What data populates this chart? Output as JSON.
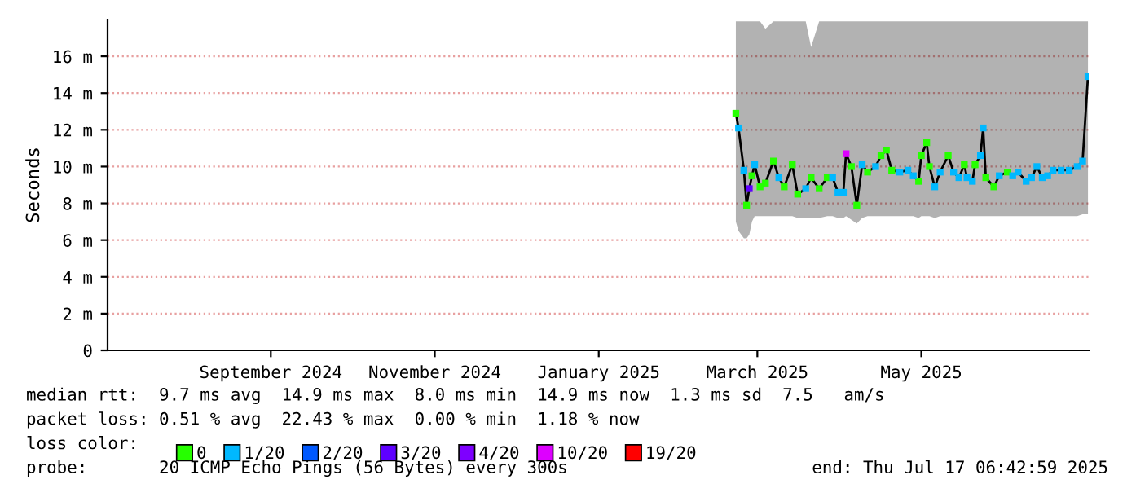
{
  "chart_data": {
    "type": "line",
    "ylabel": "Seconds",
    "xlim": [
      "2024-07-17T06:43",
      "2025-07-17T06:43"
    ],
    "xticks": [
      {
        "value": "2024-09-16",
        "label": "September 2024"
      },
      {
        "value": "2024-11-16",
        "label": "November 2024"
      },
      {
        "value": "2025-01-16",
        "label": "January 2025"
      },
      {
        "value": "2025-03-16",
        "label": "March 2025"
      },
      {
        "value": "2025-05-16",
        "label": "May 2025"
      }
    ],
    "ylim": [
      0,
      18
    ],
    "yticks": [
      0,
      {
        "value": 2,
        "label": "2 m"
      },
      {
        "value": 4,
        "label": "4 m"
      },
      {
        "value": 6,
        "label": "6 m"
      },
      {
        "value": 8,
        "label": "8 m"
      },
      {
        "value": 10,
        "label": "10 m"
      },
      {
        "value": 12,
        "label": "12 m"
      },
      {
        "value": 14,
        "label": "14 m"
      },
      {
        "value": 16,
        "label": "16 m"
      }
    ],
    "grid": "y",
    "legend": "bottom",
    "series": [
      {
        "color": "#000000",
        "marker": "none",
        "line_style": "solid",
        "x": [
          "2025-03-08",
          "2025-03-09",
          "2025-03-11",
          "2025-03-12",
          "2025-03-13",
          "2025-03-14",
          "2025-03-15",
          "2025-03-17",
          "2025-03-19",
          "2025-03-22",
          "2025-03-24",
          "2025-03-26",
          "2025-03-29",
          "2025-03-31",
          "2025-04-03",
          "2025-04-05",
          "2025-04-08",
          "2025-04-11",
          "2025-04-13",
          "2025-04-15",
          "2025-04-17",
          "2025-04-18",
          "2025-04-20",
          "2025-04-22",
          "2025-04-24",
          "2025-04-26",
          "2025-04-29",
          "2025-05-01",
          "2025-05-03",
          "2025-05-05",
          "2025-05-08",
          "2025-05-11",
          "2025-05-13",
          "2025-05-15",
          "2025-05-16",
          "2025-05-18",
          "2025-05-19",
          "2025-05-21",
          "2025-05-23",
          "2025-05-26",
          "2025-05-28",
          "2025-05-30",
          "2025-06-01",
          "2025-06-02",
          "2025-06-04",
          "2025-06-05",
          "2025-06-07",
          "2025-06-08",
          "2025-06-09",
          "2025-06-12",
          "2025-06-14",
          "2025-06-17",
          "2025-06-19",
          "2025-06-21",
          "2025-06-24",
          "2025-06-26",
          "2025-06-28",
          "2025-06-30",
          "2025-07-02",
          "2025-07-04",
          "2025-07-07",
          "2025-07-10",
          "2025-07-13",
          "2025-07-15",
          "2025-07-17"
        ],
        "values": [
          12.9,
          12.1,
          9.8,
          7.9,
          8.8,
          9.5,
          10.1,
          8.9,
          9.1,
          10.3,
          9.4,
          8.9,
          10.1,
          8.5,
          8.8,
          9.4,
          8.8,
          9.4,
          9.4,
          8.6,
          8.6,
          10.7,
          10.0,
          7.9,
          10.1,
          9.7,
          10.0,
          10.6,
          10.9,
          9.8,
          9.7,
          9.8,
          9.5,
          9.2,
          10.6,
          11.3,
          10.0,
          8.9,
          9.7,
          10.6,
          9.7,
          9.4,
          10.1,
          9.4,
          9.2,
          10.1,
          10.6,
          12.1,
          9.4,
          8.9,
          9.5,
          9.7,
          9.5,
          9.7,
          9.2,
          9.4,
          10.0,
          9.4,
          9.5,
          9.8,
          9.8,
          9.8,
          10.0,
          10.3,
          14.9
        ],
        "lower": [
          7.0,
          6.5,
          6.1,
          6.1,
          6.3,
          7.0,
          7.3,
          7.3,
          7.3,
          7.3,
          7.3,
          7.3,
          7.3,
          7.2,
          7.2,
          7.2,
          7.2,
          7.3,
          7.3,
          7.2,
          7.2,
          7.3,
          7.1,
          6.9,
          7.2,
          7.3,
          7.3,
          7.3,
          7.3,
          7.3,
          7.3,
          7.3,
          7.3,
          7.2,
          7.3,
          7.3,
          7.3,
          7.2,
          7.3,
          7.3,
          7.3,
          7.3,
          7.3,
          7.3,
          7.3,
          7.3,
          7.3,
          7.3,
          7.3,
          7.3,
          7.3,
          7.3,
          7.3,
          7.3,
          7.3,
          7.3,
          7.3,
          7.3,
          7.3,
          7.3,
          7.3,
          7.3,
          7.3,
          7.4,
          7.4
        ],
        "upper": [
          17.9,
          17.9,
          17.9,
          17.9,
          17.9,
          17.9,
          17.9,
          17.9,
          17.5,
          17.9,
          17.9,
          17.9,
          17.9,
          17.9,
          17.9,
          16.5,
          17.9,
          17.9,
          17.9,
          17.9,
          17.9,
          17.9,
          17.9,
          17.9,
          17.9,
          17.9,
          17.9,
          17.9,
          17.9,
          17.9,
          17.9,
          17.9,
          17.9,
          17.9,
          17.9,
          17.9,
          17.9,
          17.9,
          17.9,
          17.9,
          17.9,
          17.9,
          17.9,
          17.9,
          17.9,
          17.9,
          17.9,
          17.9,
          17.9,
          17.9,
          17.9,
          17.9,
          17.9,
          17.9,
          17.9,
          17.9,
          17.9,
          17.9,
          17.9,
          17.9,
          17.9,
          17.9,
          17.9,
          17.9,
          17.9
        ]
      },
      {
        "type": "scatter",
        "name": "0",
        "color": "#26ff00",
        "marker": "square",
        "x": [
          "2025-03-08",
          "2025-03-12",
          "2025-03-14",
          "2025-03-17",
          "2025-03-19",
          "2025-03-22",
          "2025-03-26",
          "2025-03-29",
          "2025-03-31",
          "2025-04-05",
          "2025-04-08",
          "2025-04-11",
          "2025-04-20",
          "2025-04-22",
          "2025-04-26",
          "2025-05-01",
          "2025-05-03",
          "2025-05-05",
          "2025-05-15",
          "2025-05-16",
          "2025-05-18",
          "2025-05-19",
          "2025-05-26",
          "2025-06-01",
          "2025-06-05",
          "2025-06-09",
          "2025-06-12",
          "2025-06-17"
        ],
        "values": [
          12.9,
          7.9,
          9.5,
          8.9,
          9.1,
          10.3,
          8.9,
          10.1,
          8.5,
          9.4,
          8.8,
          9.4,
          10.0,
          7.9,
          9.7,
          10.6,
          10.9,
          9.8,
          9.2,
          10.6,
          11.3,
          10.0,
          10.6,
          10.1,
          10.1,
          9.4,
          8.9,
          9.7
        ]
      },
      {
        "type": "scatter",
        "name": "1/20",
        "color": "#00b8ff",
        "marker": "square",
        "x": [
          "2025-03-09",
          "2025-03-11",
          "2025-03-15",
          "2025-03-24",
          "2025-04-03",
          "2025-04-13",
          "2025-04-15",
          "2025-04-17",
          "2025-04-24",
          "2025-04-29",
          "2025-05-08",
          "2025-05-11",
          "2025-05-13",
          "2025-05-21",
          "2025-05-23",
          "2025-05-28",
          "2025-05-30",
          "2025-06-02",
          "2025-06-04",
          "2025-06-07",
          "2025-06-08",
          "2025-06-14",
          "2025-06-19",
          "2025-06-21",
          "2025-06-24",
          "2025-06-26",
          "2025-06-28",
          "2025-06-30",
          "2025-07-02",
          "2025-07-04",
          "2025-07-07",
          "2025-07-10",
          "2025-07-13",
          "2025-07-15",
          "2025-07-17"
        ],
        "values": [
          12.1,
          9.8,
          10.1,
          9.4,
          8.8,
          9.4,
          8.6,
          8.6,
          10.1,
          10.0,
          9.7,
          9.8,
          9.5,
          8.9,
          9.7,
          9.7,
          9.4,
          9.4,
          9.2,
          10.6,
          12.1,
          9.5,
          9.5,
          9.7,
          9.2,
          9.4,
          10.0,
          9.4,
          9.5,
          9.8,
          9.8,
          9.8,
          10.0,
          10.3,
          14.9
        ]
      },
      {
        "type": "scatter",
        "name": "2/20",
        "color": "#0059ff",
        "marker": "square"
      },
      {
        "type": "scatter",
        "name": "3/20",
        "color": "#5e00ff",
        "marker": "square",
        "x": [
          "2025-03-13"
        ],
        "values": [
          8.8
        ]
      },
      {
        "type": "scatter",
        "name": "4/20",
        "color": "#7e00ff",
        "marker": "square"
      },
      {
        "type": "scatter",
        "name": "10/20",
        "color": "#dd00ff",
        "marker": "square",
        "x": [
          "2025-04-18"
        ],
        "values": [
          10.7
        ]
      },
      {
        "type": "scatter",
        "name": "19/20",
        "color": "#ff0000",
        "marker": "square"
      }
    ],
    "legend_title": "loss color:",
    "annotations": [
      "median rtt:  9.7 ms avg  14.9 ms max  8.0 ms min  14.9 ms now  1.3 ms sd  7.5   am/s",
      "packet loss: 0.51 % avg  22.43 % max  0.00 % min  1.18 % now",
      "probe:       20 ICMP Echo Pings (56 Bytes) every 300s",
      "end: Thu Jul 17 06:42:59 2025"
    ]
  }
}
